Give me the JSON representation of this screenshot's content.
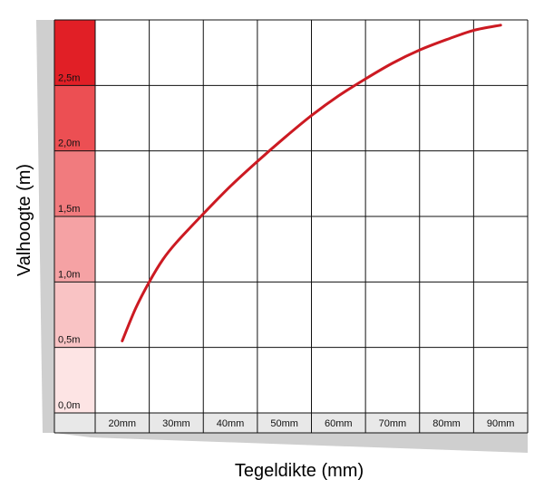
{
  "chart_data": {
    "type": "line",
    "title": "",
    "xlabel": "Tegeldikte (mm)",
    "ylabel": "Valhoogte (m)",
    "x_categories": [
      "20mm",
      "30mm",
      "40mm",
      "50mm",
      "60mm",
      "70mm",
      "80mm",
      "90mm"
    ],
    "y_ticks": [
      "0,0m",
      "0,5m",
      "1,0m",
      "1,5m",
      "2,0m",
      "2,5m"
    ],
    "x_range_mm": [
      20,
      90
    ],
    "y_range_m": [
      0,
      3
    ],
    "grid": true,
    "legend": "none",
    "series": [
      {
        "x": [
          20,
          22.5,
          25,
          27.5,
          30,
          35,
          40,
          45,
          50,
          55,
          60,
          65,
          70,
          75,
          80,
          85,
          90
        ],
        "y": [
          0.55,
          0.8,
          1.0,
          1.17,
          1.3,
          1.52,
          1.73,
          1.92,
          2.1,
          2.27,
          2.42,
          2.55,
          2.67,
          2.77,
          2.85,
          2.92,
          2.96
        ]
      }
    ],
    "colors": {
      "line": "#cc1a22",
      "band_shades": [
        "#fde4e4",
        "#f9c3c4",
        "#f5a2a4",
        "#f17b7e",
        "#ec4f53",
        "#e11f26"
      ],
      "grid": "#111111",
      "ribbon": "#cfcfcf"
    }
  }
}
